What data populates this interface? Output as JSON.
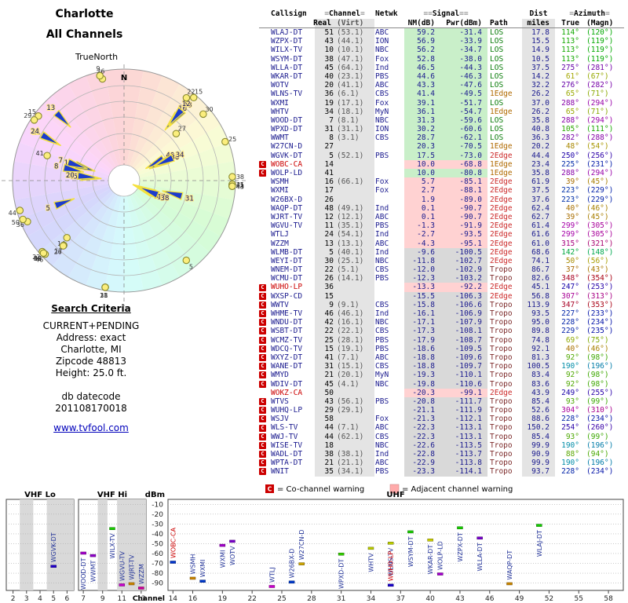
{
  "radar": {
    "city": "Charlotte",
    "mode": "All Channels",
    "north": "TrueNorth",
    "n": "N"
  },
  "criteria": {
    "title": "Search Criteria",
    "lines": [
      "CURRENT+PENDING",
      "Address: exact",
      "Charlotte, MI",
      "Zipcode 48813",
      "Height: 25.0 ft."
    ],
    "db_label": "db datecode",
    "db_code": "201108170018",
    "link": "www.tvfool.com"
  },
  "legend": {
    "co_symbol": "C",
    "co_text": "= Co-channel warning",
    "adj_text": "= Adjacent channel warning"
  },
  "colors": {
    "accent_navy": "#1a1a8e",
    "warning_red": "#cc0000",
    "adjacent_pink": "#ffaaaa",
    "tier_green": "#c9efc9",
    "tier_pink": "#ffd2d2",
    "tier_gray": "#d9d9d9",
    "path_los": "#0a7d0a",
    "path_1edge": "#b06a00",
    "path_2edge": "#cc2a2a",
    "path_tropo": "#7d2a2a"
  },
  "table": {
    "header": {
      "callsign": "Callsign",
      "channel_group": "Channel",
      "netwk": "Netwk",
      "signal_group": "Signal",
      "dist_group": "Dist",
      "azimuth_group": "Azimuth",
      "real": "Real",
      "virt": "(Virt)",
      "nm": "NM(dB)",
      "pwr": "Pwr(dBm)",
      "path": "Path",
      "miles": "miles",
      "true": "True",
      "magn": "(Magn)"
    },
    "rows": [
      {
        "callsign": "WLAJ-DT",
        "real": "51",
        "virt": "(53.1)",
        "netwk": "ABC",
        "nm": "59.2",
        "pwr": "-31.4",
        "path": "LOS",
        "dist": "17.8",
        "az": "114°",
        "magn": "(120°)",
        "tier": "green",
        "warn": false,
        "red": false
      },
      {
        "callsign": "WZPX-DT",
        "real": "43",
        "virt": "(44.1)",
        "netwk": "ION",
        "nm": "56.9",
        "pwr": "-33.9",
        "path": "LOS",
        "dist": "15.5",
        "az": "113°",
        "magn": "(119°)",
        "tier": "green",
        "warn": false,
        "red": false
      },
      {
        "callsign": "WILX-TV",
        "real": "10",
        "virt": "(10.1)",
        "netwk": "NBC",
        "nm": "56.2",
        "pwr": "-34.7",
        "path": "LOS",
        "dist": "14.9",
        "az": "113°",
        "magn": "(119°)",
        "tier": "green",
        "warn": false,
        "red": false
      },
      {
        "callsign": "WSYM-DT",
        "real": "38",
        "virt": "(47.1)",
        "netwk": "Fox",
        "nm": "52.8",
        "pwr": "-38.0",
        "path": "LOS",
        "dist": "10.5",
        "az": "113°",
        "magn": "(119°)",
        "tier": "green",
        "warn": false,
        "red": false
      },
      {
        "callsign": "WLLA-DT",
        "real": "45",
        "virt": "(64.1)",
        "netwk": "Ind",
        "nm": "46.5",
        "pwr": "-44.3",
        "path": "LOS",
        "dist": "37.5",
        "az": "275°",
        "magn": "(281°)",
        "tier": "green",
        "warn": false,
        "red": false
      },
      {
        "callsign": "WKAR-DT",
        "real": "40",
        "virt": "(23.1)",
        "netwk": "PBS",
        "nm": "44.6",
        "pwr": "-46.3",
        "path": "LOS",
        "dist": "14.2",
        "az": "61°",
        "magn": "(67°)",
        "tier": "green",
        "warn": false,
        "red": false
      },
      {
        "callsign": "WOTV",
        "real": "20",
        "virt": "(41.1)",
        "netwk": "ABC",
        "nm": "43.3",
        "pwr": "-47.6",
        "path": "LOS",
        "dist": "32.2",
        "az": "276°",
        "magn": "(282°)",
        "tier": "green",
        "warn": false,
        "red": false
      },
      {
        "callsign": "WLNS-TV",
        "real": "36",
        "virt": "(6.1)",
        "netwk": "CBS",
        "nm": "41.4",
        "pwr": "-49.5",
        "path": "1Edge",
        "dist": "26.2",
        "az": "65°",
        "magn": "(71°)",
        "tier": "green",
        "warn": false,
        "red": false
      },
      {
        "callsign": "WXMI",
        "real": "19",
        "virt": "(17.1)",
        "netwk": "Fox",
        "nm": "39.1",
        "pwr": "-51.7",
        "path": "LOS",
        "dist": "37.0",
        "az": "288°",
        "magn": "(294°)",
        "tier": "green",
        "warn": false,
        "red": false
      },
      {
        "callsign": "WHTV",
        "real": "34",
        "virt": "(18.1)",
        "netwk": "MyN",
        "nm": "36.1",
        "pwr": "-54.7",
        "path": "1Edge",
        "dist": "26.2",
        "az": "65°",
        "magn": "(71°)",
        "tier": "green",
        "warn": false,
        "red": false
      },
      {
        "callsign": "WOOD-DT",
        "real": "7",
        "virt": "(8.1)",
        "netwk": "NBC",
        "nm": "31.3",
        "pwr": "-59.6",
        "path": "LOS",
        "dist": "35.8",
        "az": "288°",
        "magn": "(294°)",
        "tier": "green",
        "warn": false,
        "red": false
      },
      {
        "callsign": "WPXD-DT",
        "real": "31",
        "virt": "(31.1)",
        "netwk": "ION",
        "nm": "30.2",
        "pwr": "-60.6",
        "path": "LOS",
        "dist": "40.8",
        "az": "105°",
        "magn": "(111°)",
        "tier": "green",
        "warn": false,
        "red": false
      },
      {
        "callsign": "WWMT",
        "real": "8",
        "virt": "(3.1)",
        "netwk": "CBS",
        "nm": "28.7",
        "pwr": "-62.1",
        "path": "LOS",
        "dist": "36.3",
        "az": "282°",
        "magn": "(288°)",
        "tier": "green",
        "warn": false,
        "red": false
      },
      {
        "callsign": "W27CN-D",
        "real": "27",
        "virt": "",
        "netwk": "",
        "nm": "20.3",
        "pwr": "-70.5",
        "path": "1Edge",
        "dist": "20.2",
        "az": "48°",
        "magn": "(54°)",
        "tier": "green",
        "warn": false,
        "red": false
      },
      {
        "callsign": "WGVK-DT",
        "real": "5",
        "virt": "(52.1)",
        "netwk": "PBS",
        "nm": "17.5",
        "pwr": "-73.0",
        "path": "2Edge",
        "dist": "44.4",
        "az": "250°",
        "magn": "(256°)",
        "tier": "green",
        "warn": false,
        "red": false
      },
      {
        "callsign": "WOBC-CA",
        "real": "14",
        "virt": "",
        "netwk": "",
        "nm": "10.0",
        "pwr": "-68.8",
        "path": "1Edge",
        "dist": "23.4",
        "az": "225°",
        "magn": "(231°)",
        "tier": "pink",
        "warn": true,
        "red": true
      },
      {
        "callsign": "WOLP-LD",
        "real": "41",
        "virt": "",
        "netwk": "",
        "nm": "10.0",
        "pwr": "-80.8",
        "path": "1Edge",
        "dist": "35.8",
        "az": "288°",
        "magn": "(294°)",
        "tier": "green",
        "warn": true,
        "red": false
      },
      {
        "callsign": "WSMH",
        "real": "16",
        "virt": "(66.1)",
        "netwk": "Fox",
        "nm": "5.7",
        "pwr": "-85.1",
        "path": "2Edge",
        "dist": "61.9",
        "az": "39°",
        "magn": "(45°)",
        "tier": "pink",
        "warn": false,
        "red": false
      },
      {
        "callsign": "WXMI",
        "real": "17",
        "virt": "",
        "netwk": "Fox",
        "nm": "2.7",
        "pwr": "-88.1",
        "path": "2Edge",
        "dist": "37.5",
        "az": "223°",
        "magn": "(229°)",
        "tier": "pink",
        "warn": false,
        "red": false
      },
      {
        "callsign": "W26BX-D",
        "real": "26",
        "virt": "",
        "netwk": "",
        "nm": "1.9",
        "pwr": "-89.0",
        "path": "2Edge",
        "dist": "37.6",
        "az": "223°",
        "magn": "(229°)",
        "tier": "pink",
        "warn": false,
        "red": false
      },
      {
        "callsign": "WAQP-DT",
        "real": "48",
        "virt": "(49.1)",
        "netwk": "Ind",
        "nm": "0.1",
        "pwr": "-90.7",
        "path": "2Edge",
        "dist": "62.4",
        "az": "40°",
        "magn": "(46°)",
        "tier": "pink",
        "warn": false,
        "red": false
      },
      {
        "callsign": "WJRT-TV",
        "real": "12",
        "virt": "(12.1)",
        "netwk": "ABC",
        "nm": "0.1",
        "pwr": "-90.7",
        "path": "2Edge",
        "dist": "62.7",
        "az": "39°",
        "magn": "(45°)",
        "tier": "pink",
        "warn": false,
        "red": false
      },
      {
        "callsign": "WGVU-TV",
        "real": "11",
        "virt": "(35.1)",
        "netwk": "PBS",
        "nm": "-1.3",
        "pwr": "-91.9",
        "path": "2Edge",
        "dist": "61.4",
        "az": "299°",
        "magn": "(305°)",
        "tier": "pink",
        "warn": false,
        "red": false
      },
      {
        "callsign": "WTLJ",
        "real": "24",
        "virt": "(54.1)",
        "netwk": "Ind",
        "nm": "-2.7",
        "pwr": "-93.5",
        "path": "2Edge",
        "dist": "61.6",
        "az": "299°",
        "magn": "(305°)",
        "tier": "pink",
        "warn": false,
        "red": false
      },
      {
        "callsign": "WZZM",
        "real": "13",
        "virt": "(13.1)",
        "netwk": "ABC",
        "nm": "-4.3",
        "pwr": "-95.1",
        "path": "2Edge",
        "dist": "61.0",
        "az": "315°",
        "magn": "(321°)",
        "tier": "pink",
        "warn": false,
        "red": false
      },
      {
        "callsign": "WLMB-DT",
        "real": "5",
        "virt": "(40.1)",
        "netwk": "Ind",
        "nm": "-9.6",
        "pwr": "-100.5",
        "path": "2Edge",
        "dist": "68.6",
        "az": "142°",
        "magn": "(148°)",
        "tier": "gray",
        "warn": false,
        "red": false
      },
      {
        "callsign": "WEYI-DT",
        "real": "30",
        "virt": "(25.1)",
        "netwk": "NBC",
        "nm": "-11.8",
        "pwr": "-102.7",
        "path": "2Edge",
        "dist": "74.1",
        "az": "50°",
        "magn": "(56°)",
        "tier": "gray",
        "warn": false,
        "red": false
      },
      {
        "callsign": "WNEM-DT",
        "real": "22",
        "virt": "(5.1)",
        "netwk": "CBS",
        "nm": "-12.0",
        "pwr": "-102.9",
        "path": "Tropo",
        "dist": "86.7",
        "az": "37°",
        "magn": "(43°)",
        "tier": "gray",
        "warn": false,
        "red": false
      },
      {
        "callsign": "WCMU-DT",
        "real": "26",
        "virt": "(14.1)",
        "netwk": "PBS",
        "nm": "-12.3",
        "pwr": "-103.2",
        "path": "Tropo",
        "dist": "82.6",
        "az": "348°",
        "magn": "(354°)",
        "tier": "gray",
        "warn": false,
        "red": false
      },
      {
        "callsign": "WUHO-LP",
        "real": "36",
        "virt": "",
        "netwk": "",
        "nm": "-13.3",
        "pwr": "-92.2",
        "path": "2Edge",
        "dist": "45.1",
        "az": "247°",
        "magn": "(253°)",
        "tier": "pink",
        "warn": true,
        "red": true
      },
      {
        "callsign": "WXSP-CD",
        "real": "15",
        "virt": "",
        "netwk": "",
        "nm": "-15.5",
        "pwr": "-106.3",
        "path": "2Edge",
        "dist": "56.8",
        "az": "307°",
        "magn": "(313°)",
        "tier": "gray",
        "warn": true,
        "red": false
      },
      {
        "callsign": "WWTV",
        "real": "9",
        "virt": "(9.1)",
        "netwk": "CBS",
        "nm": "-15.8",
        "pwr": "-106.6",
        "path": "Tropo",
        "dist": "113.9",
        "az": "347°",
        "magn": "(353°)",
        "tier": "gray",
        "warn": true,
        "red": false
      },
      {
        "callsign": "WHME-TV",
        "real": "46",
        "virt": "(46.1)",
        "netwk": "Ind",
        "nm": "-16.1",
        "pwr": "-106.9",
        "path": "Tropo",
        "dist": "93.5",
        "az": "227°",
        "magn": "(233°)",
        "tier": "gray",
        "warn": true,
        "red": false
      },
      {
        "callsign": "WNDU-DT",
        "real": "42",
        "virt": "(16.1)",
        "netwk": "NBC",
        "nm": "-17.1",
        "pwr": "-107.9",
        "path": "Tropo",
        "dist": "95.0",
        "az": "228°",
        "magn": "(234°)",
        "tier": "gray",
        "warn": true,
        "red": false
      },
      {
        "callsign": "WSBT-DT",
        "real": "22",
        "virt": "(22.1)",
        "netwk": "CBS",
        "nm": "-17.3",
        "pwr": "-108.1",
        "path": "Tropo",
        "dist": "89.8",
        "az": "229°",
        "magn": "(235°)",
        "tier": "gray",
        "warn": true,
        "red": false
      },
      {
        "callsign": "WCMZ-TV",
        "real": "25",
        "virt": "(28.1)",
        "netwk": "PBS",
        "nm": "-17.9",
        "pwr": "-108.7",
        "path": "Tropo",
        "dist": "74.8",
        "az": "69°",
        "magn": "(75°)",
        "tier": "gray",
        "warn": true,
        "red": false
      },
      {
        "callsign": "WDCQ-TV",
        "real": "15",
        "virt": "(19.1)",
        "netwk": "PBS",
        "nm": "-18.6",
        "pwr": "-109.5",
        "path": "Tropo",
        "dist": "92.1",
        "az": "40°",
        "magn": "(46°)",
        "tier": "gray",
        "warn": true,
        "red": false
      },
      {
        "callsign": "WXYZ-DT",
        "real": "41",
        "virt": "(7.1)",
        "netwk": "ABC",
        "nm": "-18.8",
        "pwr": "-109.6",
        "path": "Tropo",
        "dist": "81.3",
        "az": "92°",
        "magn": "(98°)",
        "tier": "gray",
        "warn": true,
        "red": false
      },
      {
        "callsign": "WANE-DT",
        "real": "31",
        "virt": "(15.1)",
        "netwk": "CBS",
        "nm": "-18.8",
        "pwr": "-109.7",
        "path": "Tropo",
        "dist": "100.5",
        "az": "190°",
        "magn": "(196°)",
        "tier": "gray",
        "warn": true,
        "red": false
      },
      {
        "callsign": "WMYD",
        "real": "21",
        "virt": "(20.1)",
        "netwk": "MyN",
        "nm": "-19.3",
        "pwr": "-110.1",
        "path": "Tropo",
        "dist": "83.4",
        "az": "92°",
        "magn": "(98°)",
        "tier": "gray",
        "warn": true,
        "red": false
      },
      {
        "callsign": "WDIV-DT",
        "real": "45",
        "virt": "(4.1)",
        "netwk": "NBC",
        "nm": "-19.8",
        "pwr": "-110.6",
        "path": "Tropo",
        "dist": "83.6",
        "az": "92°",
        "magn": "(98°)",
        "tier": "gray",
        "warn": true,
        "red": false
      },
      {
        "callsign": "WOKZ-CA",
        "real": "50",
        "virt": "",
        "netwk": "",
        "nm": "-20.3",
        "pwr": "-99.1",
        "path": "2Edge",
        "dist": "43.9",
        "az": "249°",
        "magn": "(255°)",
        "tier": "pink",
        "warn": false,
        "red": true
      },
      {
        "callsign": "WTVS",
        "real": "43",
        "virt": "(56.1)",
        "netwk": "PBS",
        "nm": "-20.8",
        "pwr": "-111.7",
        "path": "Tropo",
        "dist": "85.4",
        "az": "93°",
        "magn": "(99°)",
        "tier": "gray",
        "warn": true,
        "red": false
      },
      {
        "callsign": "WUHQ-LP",
        "real": "29",
        "virt": "(29.1)",
        "netwk": "",
        "nm": "-21.1",
        "pwr": "-111.9",
        "path": "Tropo",
        "dist": "52.6",
        "az": "304°",
        "magn": "(310°)",
        "tier": "gray",
        "warn": true,
        "red": false
      },
      {
        "callsign": "WSJV",
        "real": "58",
        "virt": "",
        "netwk": "Fox",
        "nm": "-21.3",
        "pwr": "-112.1",
        "path": "Tropo",
        "dist": "88.6",
        "az": "228°",
        "magn": "(234°)",
        "tier": "gray",
        "warn": true,
        "red": false
      },
      {
        "callsign": "WLS-TV",
        "real": "44",
        "virt": "(7.1)",
        "netwk": "ABC",
        "nm": "-22.3",
        "pwr": "-113.1",
        "path": "Tropo",
        "dist": "150.2",
        "az": "254°",
        "magn": "(260°)",
        "tier": "gray",
        "warn": true,
        "red": false
      },
      {
        "callsign": "WWJ-TV",
        "real": "44",
        "virt": "(62.1)",
        "netwk": "CBS",
        "nm": "-22.3",
        "pwr": "-113.1",
        "path": "Tropo",
        "dist": "85.4",
        "az": "93°",
        "magn": "(99°)",
        "tier": "gray",
        "warn": true,
        "red": false
      },
      {
        "callsign": "WISE-TV",
        "real": "18",
        "virt": "",
        "netwk": "NBC",
        "nm": "-22.6",
        "pwr": "-113.5",
        "path": "Tropo",
        "dist": "99.9",
        "az": "190°",
        "magn": "(196°)",
        "tier": "gray",
        "warn": true,
        "red": false
      },
      {
        "callsign": "WADL-DT",
        "real": "38",
        "virt": "(38.1)",
        "netwk": "Ind",
        "nm": "-22.8",
        "pwr": "-113.7",
        "path": "Tropo",
        "dist": "90.9",
        "az": "88°",
        "magn": "(94°)",
        "tier": "gray",
        "warn": true,
        "red": false
      },
      {
        "callsign": "WPTA-DT",
        "real": "21",
        "virt": "(21.1)",
        "netwk": "ABC",
        "nm": "-22.9",
        "pwr": "-113.8",
        "path": "Tropo",
        "dist": "99.9",
        "az": "190°",
        "magn": "(196°)",
        "tier": "gray",
        "warn": true,
        "red": false
      },
      {
        "callsign": "WNIT",
        "real": "35",
        "virt": "(34.1)",
        "netwk": "PBS",
        "nm": "-23.3",
        "pwr": "-114.1",
        "path": "Tropo",
        "dist": "93.7",
        "az": "228°",
        "magn": "(234°)",
        "tier": "gray",
        "warn": true,
        "red": false
      }
    ]
  },
  "bottom_chart": {
    "dbm_label": "dBm",
    "channel_label": "Channel",
    "bands": {
      "vhf_lo": "VHF Lo",
      "vhf_hi": "VHF Hi",
      "uhf": "UHF"
    },
    "y_ticks": [
      "-10",
      "-20",
      "-30",
      "-40",
      "-50",
      "-60",
      "-70",
      "-80",
      "-90"
    ],
    "x_ticks_vhf_lo": [
      "2",
      "3",
      "4",
      "5",
      "6"
    ],
    "x_ticks_vhf_hi": [
      "7",
      "9",
      "11",
      "13"
    ],
    "x_ticks_uhf": [
      "14",
      "16",
      "19",
      "22",
      "25",
      "28",
      "31",
      "34",
      "37",
      "40",
      "43",
      "46",
      "49",
      "52",
      "55",
      "58"
    ]
  }
}
